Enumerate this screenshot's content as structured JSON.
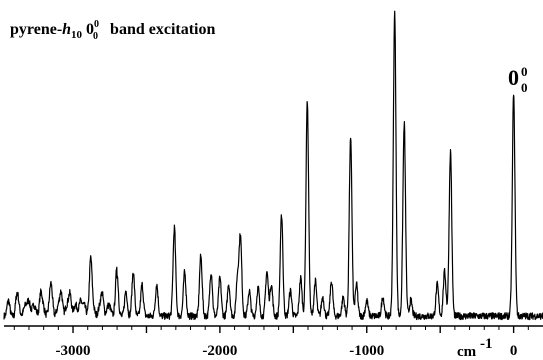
{
  "chart_data": {
    "type": "line",
    "title_parts": {
      "base": "pyrene-",
      "italic": "h",
      "sub": "10",
      "band": "0",
      "band_sup": "0",
      "band_sub": "0",
      "rest": "band excitation"
    },
    "peak_label": {
      "main": "0",
      "sup": "0",
      "sub": "0"
    },
    "x_unit_label": {
      "base": "cm",
      "sup": "-1"
    },
    "x_tick_labels": [
      "-3000",
      "-2000",
      "-1000",
      "0"
    ],
    "x_ticks": [
      -3000,
      -2000,
      -1000,
      0
    ],
    "xlim": [
      -3470,
      200
    ],
    "ylim": [
      0,
      100
    ],
    "grid": false,
    "baseline": 2.5,
    "peaks": [
      [
        -3440,
        5
      ],
      [
        -3380,
        4
      ],
      [
        -3300,
        4
      ],
      [
        -3220,
        5
      ],
      [
        -3150,
        7
      ],
      [
        -3080,
        6
      ],
      [
        -3020,
        6
      ],
      [
        -2950,
        4
      ],
      [
        -2880,
        16
      ],
      [
        -2800,
        5
      ],
      [
        -2700,
        13
      ],
      [
        -2640,
        8
      ],
      [
        -2590,
        14
      ],
      [
        -2530,
        10
      ],
      [
        -2430,
        10
      ],
      [
        -2310,
        28
      ],
      [
        -2240,
        14
      ],
      [
        -2130,
        19
      ],
      [
        -2060,
        14
      ],
      [
        -2000,
        12
      ],
      [
        -1940,
        10
      ],
      [
        -1880,
        12
      ],
      [
        -1860,
        25
      ],
      [
        -1800,
        8
      ],
      [
        -1740,
        9
      ],
      [
        -1680,
        14
      ],
      [
        -1650,
        10
      ],
      [
        -1580,
        32
      ],
      [
        -1520,
        8
      ],
      [
        -1450,
        12
      ],
      [
        -1405,
        68
      ],
      [
        -1350,
        11
      ],
      [
        -1300,
        6
      ],
      [
        -1240,
        11
      ],
      [
        -1160,
        6
      ],
      [
        -1110,
        56
      ],
      [
        -1070,
        10
      ],
      [
        -1000,
        5
      ],
      [
        -890,
        6
      ],
      [
        -810,
        96
      ],
      [
        -745,
        61
      ],
      [
        -700,
        5
      ],
      [
        -520,
        10
      ],
      [
        -470,
        14
      ],
      [
        -430,
        52
      ],
      [
        0,
        70
      ]
    ]
  }
}
